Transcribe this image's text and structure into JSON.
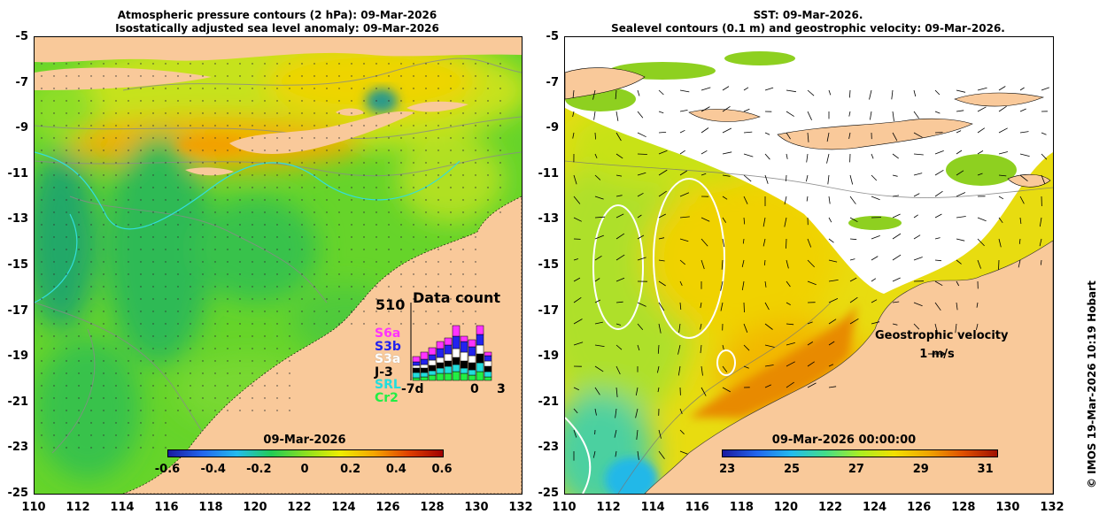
{
  "left_panel": {
    "title_line1": "Atmospheric pressure contours (2 hPa): 09-Mar-2026",
    "title_line2": "Isostatically adjusted sea level anomaly: 09-Mar-2026",
    "colorbar_title": "09-Mar-2026",
    "colorbar_ticks": [
      "-0.6",
      "-0.4",
      "-0.2",
      "0",
      "0.2",
      "0.4",
      "0.6"
    ],
    "data_count": {
      "title": "Data count",
      "max_label": "510",
      "x_labels": [
        "-7d",
        "0",
        "3"
      ],
      "missions": [
        {
          "name": "S6a",
          "color": "#ff33ff"
        },
        {
          "name": "S3b",
          "color": "#2222ee"
        },
        {
          "name": "S3a",
          "color": "#ffffff"
        },
        {
          "name": "J-3",
          "color": "#000000"
        },
        {
          "name": "SRL",
          "color": "#22dddd"
        },
        {
          "name": "Cr2",
          "color": "#22ee44"
        }
      ]
    }
  },
  "right_panel": {
    "title_line1": "SST: 09-Mar-2026.",
    "title_line2": "Sealevel contours (0.1 m) and geostrophic velocity: 09-Mar-2026.",
    "colorbar_title": "09-Mar-2026 00:00:00",
    "colorbar_ticks": [
      "23",
      "25",
      "27",
      "29",
      "31"
    ],
    "velocity_label": "Geostrophic velocity",
    "velocity_scale": "1 m/s"
  },
  "axes": {
    "y_ticks": [
      "-5",
      "-7",
      "-9",
      "-11",
      "-13",
      "-15",
      "-17",
      "-19",
      "-21",
      "-23",
      "-25"
    ],
    "x_ticks": [
      "110",
      "112",
      "114",
      "116",
      "118",
      "120",
      "122",
      "124",
      "126",
      "128",
      "130",
      "132"
    ]
  },
  "credit": "© IMOS 19-Mar-2026 10:19 Hobart",
  "colors": {
    "land": "#f9c99a",
    "sla_ramp": [
      "#1a1aa0",
      "#2266ee",
      "#22bbee",
      "#22cc55",
      "#8be020",
      "#eeee00",
      "#f5a500",
      "#e04000",
      "#a00000"
    ],
    "sst_ramp": [
      "#1a1aa0",
      "#2266ee",
      "#22bbee",
      "#44dd88",
      "#aaee22",
      "#f2e000",
      "#f0a500",
      "#e05000",
      "#a01000"
    ]
  }
}
